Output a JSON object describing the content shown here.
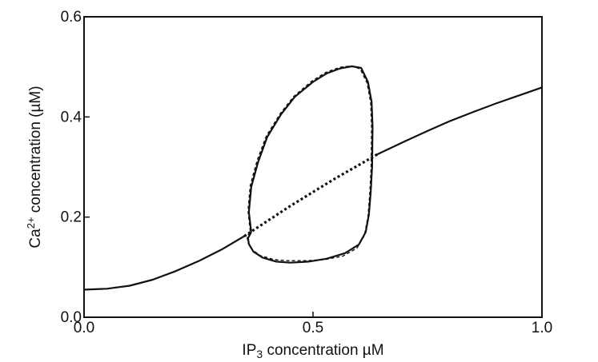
{
  "chart_data": {
    "type": "line",
    "xlabel_main": "IP",
    "xlabel_sub": "3",
    "xlabel_rest": " concentration µM",
    "ylabel_main": "Ca",
    "ylabel_sup": "2+",
    "ylabel_rest": " concentration (µM)",
    "xlim": [
      0,
      1
    ],
    "ylim": [
      0,
      0.6
    ],
    "x_ticks": [
      0,
      0.5,
      1
    ],
    "x_tick_labels": [
      "0.0",
      "0.5",
      "1.0"
    ],
    "y_ticks": [
      0,
      0.2,
      0.4,
      0.6
    ],
    "y_tick_labels": [
      "0.0",
      "0.2",
      "0.4",
      "0.6"
    ],
    "grid": false,
    "series": [
      {
        "style": "solid",
        "x": [
          0.0,
          0.05,
          0.1,
          0.15,
          0.2,
          0.25,
          0.3,
          0.35
        ],
        "y": [
          0.055,
          0.057,
          0.063,
          0.075,
          0.092,
          0.112,
          0.135,
          0.162
        ]
      },
      {
        "style": "dotted",
        "x": [
          0.35,
          0.4,
          0.45,
          0.5,
          0.55,
          0.6,
          0.64
        ],
        "y": [
          0.162,
          0.192,
          0.222,
          0.25,
          0.278,
          0.304,
          0.325
        ]
      },
      {
        "style": "solid",
        "x": [
          0.64,
          0.7,
          0.75,
          0.8,
          0.85,
          0.9,
          0.95,
          1.0
        ],
        "y": [
          0.325,
          0.351,
          0.372,
          0.392,
          0.41,
          0.427,
          0.443,
          0.459
        ]
      },
      {
        "style": "solid",
        "x": [
          0.365,
          0.36,
          0.365,
          0.38,
          0.4,
          0.43,
          0.46,
          0.5,
          0.53,
          0.56,
          0.585,
          0.605,
          0.62,
          0.628,
          0.63,
          0.629,
          0.626,
          0.622,
          0.615,
          0.6,
          0.57,
          0.53,
          0.49,
          0.45,
          0.42,
          0.39,
          0.37,
          0.36,
          0.358,
          0.365
        ],
        "y": [
          0.17,
          0.21,
          0.26,
          0.31,
          0.36,
          0.405,
          0.44,
          0.47,
          0.487,
          0.497,
          0.501,
          0.498,
          0.47,
          0.43,
          0.38,
          0.3,
          0.25,
          0.205,
          0.17,
          0.145,
          0.128,
          0.117,
          0.111,
          0.109,
          0.111,
          0.119,
          0.131,
          0.146,
          0.158,
          0.17
        ]
      },
      {
        "style": "dashed",
        "x": [
          0.363,
          0.358,
          0.363,
          0.378,
          0.398,
          0.428,
          0.458,
          0.498,
          0.528,
          0.558,
          0.583,
          0.603,
          0.618,
          0.626,
          0.628,
          0.627,
          0.624,
          0.62,
          0.612,
          0.596,
          0.565,
          0.525,
          0.485,
          0.445,
          0.415,
          0.385,
          0.367,
          0.358,
          0.356,
          0.363
        ],
        "y": [
          0.172,
          0.213,
          0.263,
          0.313,
          0.362,
          0.406,
          0.441,
          0.472,
          0.489,
          0.499,
          0.502,
          0.496,
          0.468,
          0.428,
          0.378,
          0.298,
          0.247,
          0.2,
          0.163,
          0.138,
          0.122,
          0.115,
          0.113,
          0.113,
          0.115,
          0.123,
          0.135,
          0.149,
          0.161,
          0.172
        ]
      }
    ]
  }
}
